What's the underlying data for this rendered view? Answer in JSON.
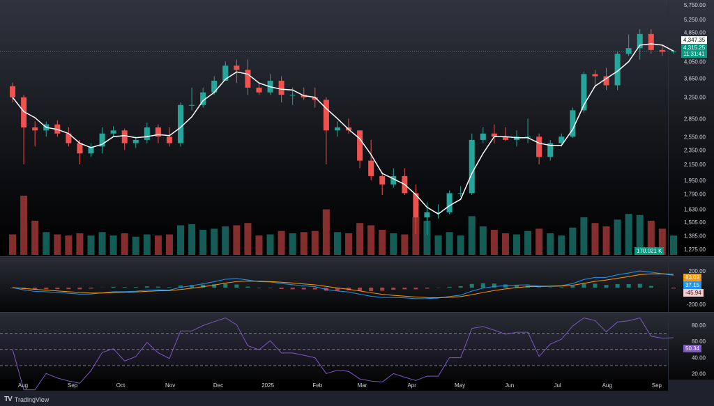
{
  "branding": {
    "name": "TradingView",
    "logo": "TV"
  },
  "colors": {
    "up": "#26a69a",
    "down": "#ef5350",
    "ma": "#ffffff",
    "macd": "#2196f3",
    "signal": "#ff9800",
    "rsi": "#7e57c2",
    "price_label": "#089981"
  },
  "price_axis": {
    "scale": "log",
    "ticks": [
      "5,750.00",
      "5,250.00",
      "4,850.00",
      "4,050.00",
      "3,650.00",
      "3,250.00",
      "2,850.00",
      "2,550.00",
      "2,350.00",
      "2,150.00",
      "1,950.00",
      "1,790.00",
      "1,630.00",
      "1,505.00",
      "1,385.00",
      "1,275.00"
    ],
    "tick_values": [
      5750,
      5250,
      4850,
      4050,
      3650,
      3250,
      2850,
      2550,
      2350,
      2150,
      1950,
      1790,
      1630,
      1505,
      1385,
      1275
    ],
    "last_high_label": "4,347.35",
    "last_price_label": "4,315.25",
    "countdown": "11:31:41",
    "volume_label": "170.021 K"
  },
  "macd_axis": {
    "ticks": [
      "200.00",
      "-200.00"
    ],
    "tick_values": [
      200,
      -200
    ],
    "signal_label": "83.09",
    "macd_label": "37.15",
    "hist_label": "-45.94"
  },
  "rsi_axis": {
    "ticks": [
      "80.00",
      "60.00",
      "40.00",
      "20.00"
    ],
    "tick_values": [
      80,
      60,
      40,
      20
    ],
    "value_label": "50.34",
    "bands": [
      70,
      50,
      30
    ]
  },
  "time_axis": {
    "labels": [
      "Aug",
      "Sep",
      "Oct",
      "Nov",
      "Dec",
      "2025",
      "Feb",
      "Mar",
      "Apr",
      "May",
      "Jun",
      "Jul",
      "Aug",
      "Sep"
    ],
    "dates": [
      "2024-08-01",
      "2024-09-01",
      "2024-10-01",
      "2024-11-01",
      "2024-12-01",
      "2025-01-01",
      "2025-02-01",
      "2025-03-01",
      "2025-04-01",
      "2025-05-01",
      "2025-06-01",
      "2025-07-01",
      "2025-08-01",
      "2025-09-01"
    ]
  },
  "chart_data": {
    "type": "candlestick",
    "scale": "log",
    "ylim": [
      1250,
      5800
    ],
    "columns": [
      "week",
      "open",
      "high",
      "low",
      "close",
      "volume_k"
    ],
    "candles": [
      [
        "2024-07-22",
        3480,
        3560,
        3150,
        3250,
        180
      ],
      [
        "2024-07-29",
        3250,
        3300,
        2150,
        2700,
        520
      ],
      [
        "2024-08-05",
        2700,
        2800,
        2400,
        2650,
        300
      ],
      [
        "2024-08-12",
        2650,
        2800,
        2550,
        2750,
        200
      ],
      [
        "2024-08-19",
        2750,
        2820,
        2550,
        2600,
        180
      ],
      [
        "2024-08-26",
        2600,
        2700,
        2400,
        2450,
        170
      ],
      [
        "2024-09-02",
        2450,
        2500,
        2150,
        2300,
        190
      ],
      [
        "2024-09-09",
        2300,
        2450,
        2250,
        2400,
        170
      ],
      [
        "2024-09-16",
        2400,
        2700,
        2300,
        2600,
        200
      ],
      [
        "2024-09-23",
        2600,
        2720,
        2550,
        2650,
        170
      ],
      [
        "2024-09-30",
        2650,
        2680,
        2350,
        2450,
        190
      ],
      [
        "2024-10-07",
        2450,
        2550,
        2380,
        2500,
        160
      ],
      [
        "2024-10-14",
        2500,
        2780,
        2450,
        2700,
        180
      ],
      [
        "2024-10-21",
        2700,
        2750,
        2450,
        2550,
        170
      ],
      [
        "2024-10-28",
        2550,
        2700,
        2400,
        2450,
        180
      ],
      [
        "2024-11-04",
        2450,
        3150,
        2400,
        3100,
        260
      ],
      [
        "2024-11-11",
        3100,
        3450,
        3000,
        3100,
        270
      ],
      [
        "2024-11-18",
        3100,
        3450,
        3050,
        3350,
        220
      ],
      [
        "2024-11-25",
        3350,
        3700,
        3300,
        3600,
        230
      ],
      [
        "2024-12-02",
        3600,
        4050,
        3600,
        3950,
        250
      ],
      [
        "2024-12-09",
        3950,
        4100,
        3550,
        3850,
        260
      ],
      [
        "2024-12-16",
        3850,
        4100,
        3300,
        3450,
        280
      ],
      [
        "2024-12-23",
        3450,
        3550,
        3300,
        3350,
        170
      ],
      [
        "2024-12-30",
        3350,
        3750,
        3300,
        3600,
        180
      ],
      [
        "2025-01-06",
        3600,
        3700,
        3150,
        3300,
        210
      ],
      [
        "2025-01-13",
        3300,
        3450,
        3100,
        3300,
        190
      ],
      [
        "2025-01-20",
        3300,
        3450,
        3200,
        3250,
        200
      ],
      [
        "2025-01-27",
        3250,
        3450,
        3050,
        3200,
        210
      ],
      [
        "2025-02-03",
        3200,
        3250,
        2150,
        2650,
        400
      ],
      [
        "2025-02-10",
        2650,
        2800,
        2550,
        2700,
        200
      ],
      [
        "2025-02-17",
        2700,
        2850,
        2600,
        2650,
        190
      ],
      [
        "2025-02-24",
        2650,
        2650,
        2100,
        2200,
        280
      ],
      [
        "2025-03-03",
        2200,
        2500,
        1950,
        2000,
        260
      ],
      [
        "2025-03-10",
        2000,
        2050,
        1780,
        1900,
        220
      ],
      [
        "2025-03-17",
        1900,
        2100,
        1860,
        2000,
        190
      ],
      [
        "2025-03-24",
        2000,
        2100,
        1780,
        1800,
        180
      ],
      [
        "2025-03-31",
        1800,
        1900,
        1400,
        1550,
        330
      ],
      [
        "2025-04-07",
        1550,
        1700,
        1390,
        1600,
        300
      ],
      [
        "2025-04-14",
        1600,
        1680,
        1540,
        1600,
        170
      ],
      [
        "2025-04-21",
        1600,
        1830,
        1580,
        1800,
        200
      ],
      [
        "2025-04-28",
        1800,
        1880,
        1760,
        1800,
        170
      ],
      [
        "2025-05-05",
        1800,
        2600,
        1780,
        2500,
        340
      ],
      [
        "2025-05-12",
        2500,
        2700,
        2450,
        2600,
        250
      ],
      [
        "2025-05-19",
        2600,
        2750,
        2450,
        2550,
        220
      ],
      [
        "2025-05-26",
        2550,
        2700,
        2480,
        2500,
        190
      ],
      [
        "2025-06-02",
        2500,
        2650,
        2400,
        2550,
        180
      ],
      [
        "2025-06-09",
        2550,
        2850,
        2450,
        2550,
        210
      ],
      [
        "2025-06-16",
        2550,
        2600,
        2150,
        2250,
        230
      ],
      [
        "2025-06-23",
        2250,
        2500,
        2200,
        2450,
        190
      ],
      [
        "2025-06-30",
        2450,
        2600,
        2400,
        2550,
        170
      ],
      [
        "2025-07-07",
        2550,
        3050,
        2530,
        3000,
        240
      ],
      [
        "2025-07-14",
        3000,
        3800,
        2950,
        3750,
        330
      ],
      [
        "2025-07-21",
        3750,
        3850,
        3500,
        3700,
        280
      ],
      [
        "2025-07-28",
        3700,
        3900,
        3400,
        3500,
        250
      ],
      [
        "2025-08-04",
        3500,
        4300,
        3400,
        4250,
        310
      ],
      [
        "2025-08-11",
        4250,
        4790,
        4200,
        4400,
        360
      ],
      [
        "2025-08-18",
        4400,
        4950,
        4100,
        4800,
        350
      ],
      [
        "2025-08-25",
        4800,
        4950,
        4250,
        4350,
        300
      ],
      [
        "2025-09-01",
        4350,
        4500,
        4200,
        4300,
        230
      ],
      [
        "2025-09-08",
        4300,
        4347.35,
        4250,
        4315.25,
        170
      ]
    ],
    "indicators": [
      "SMA",
      "MACD",
      "RSI"
    ]
  }
}
